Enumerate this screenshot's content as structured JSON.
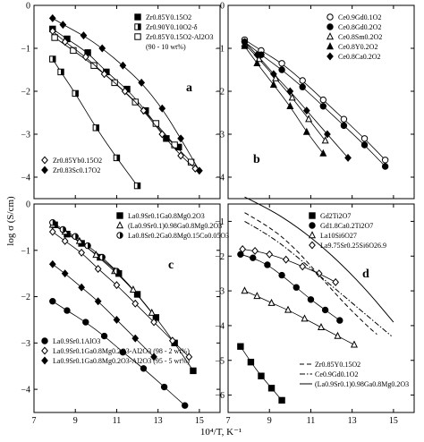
{
  "chart_data": [
    {
      "panel": "a",
      "type": "scatter",
      "xlim": [
        7,
        16
      ],
      "ylim": [
        -4.5,
        0
      ],
      "xticks": [
        7,
        9,
        11,
        13,
        15
      ],
      "yticks": [
        0,
        -1,
        -2,
        -3,
        -4
      ],
      "legend_placement": [
        "top-right",
        "bottom-left"
      ],
      "series": [
        {
          "name": "Zr0.85Y0.15O2",
          "marker": "square-filled",
          "legend": 0,
          "x": [
            7.9,
            8.6,
            9.6,
            10.5,
            11.5,
            12.4,
            13.4,
            14.0
          ],
          "y": [
            -0.55,
            -0.78,
            -1.1,
            -1.55,
            -1.95,
            -2.45,
            -3.1,
            -3.3
          ]
        },
        {
          "name": "Zr0.90Y0.10O2-δ",
          "marker": "square-half",
          "legend": 0,
          "x": [
            7.9,
            8.3,
            9.0,
            10.0,
            11.0,
            12.0
          ],
          "y": [
            -1.25,
            -1.55,
            -2.05,
            -2.85,
            -3.55,
            -4.2
          ]
        },
        {
          "name": "Zr0.85Y0.15O2-Al2O3",
          "marker": "square-open",
          "legend": 0,
          "x": [
            8.0,
            8.9,
            9.9,
            10.9,
            11.9,
            12.9,
            13.8,
            14.6
          ],
          "y": [
            -0.75,
            -1.05,
            -1.4,
            -1.8,
            -2.25,
            -2.75,
            -3.25,
            -3.65
          ]
        },
        {
          "name": "Zr0.85Yb0.15O2",
          "marker": "diamond-open",
          "legend": 1,
          "x": [
            7.9,
            8.5,
            9.5,
            10.4,
            11.4,
            12.3,
            13.2,
            14.1,
            14.8
          ],
          "y": [
            -0.6,
            -0.85,
            -1.2,
            -1.6,
            -2.0,
            -2.45,
            -3.0,
            -3.5,
            -3.8
          ]
        },
        {
          "name": "Zr0.83Sc0.17O2",
          "marker": "diamond-filled",
          "legend": 1,
          "x": [
            7.9,
            8.4,
            9.4,
            10.3,
            11.3,
            12.2,
            13.2,
            14.1,
            15.0
          ],
          "y": [
            -0.3,
            -0.45,
            -0.7,
            -1.0,
            -1.4,
            -1.8,
            -2.4,
            -3.1,
            -3.85
          ]
        }
      ],
      "legend_note": "(90 - 10 wt%)"
    },
    {
      "panel": "b",
      "type": "scatter",
      "xlim": [
        7,
        16
      ],
      "ylim": [
        -4.5,
        0
      ],
      "xticks": [
        7,
        9,
        11,
        13,
        15
      ],
      "yticks": [
        0,
        -1,
        -2,
        -3,
        -4
      ],
      "legend_placement": "top-right",
      "series": [
        {
          "name": "Ce0.9Gd0.1O2",
          "marker": "circle-open",
          "x": [
            7.8,
            8.6,
            9.6,
            10.6,
            11.6,
            12.6,
            13.6,
            14.6
          ],
          "y": [
            -0.8,
            -1.05,
            -1.35,
            -1.75,
            -2.2,
            -2.65,
            -3.1,
            -3.6
          ]
        },
        {
          "name": "Ce0.8Gd0.2O2",
          "marker": "circle-filled",
          "x": [
            7.8,
            8.6,
            9.6,
            10.6,
            11.6,
            12.6,
            13.6,
            14.6
          ],
          "y": [
            -0.85,
            -1.15,
            -1.5,
            -1.9,
            -2.35,
            -2.8,
            -3.25,
            -3.75
          ]
        },
        {
          "name": "Ce0.8Sm0.2O2",
          "marker": "triangle-open",
          "x": [
            7.8,
            8.5,
            9.3,
            10.1,
            10.9,
            11.7
          ],
          "y": [
            -0.9,
            -1.25,
            -1.7,
            -2.15,
            -2.65,
            -3.15
          ]
        },
        {
          "name": "Ce0.8Y0.2O2",
          "marker": "triangle-filled",
          "x": [
            7.8,
            8.4,
            9.2,
            10.0,
            10.8,
            11.6
          ],
          "y": [
            -0.95,
            -1.35,
            -1.85,
            -2.35,
            -2.95,
            -3.45
          ]
        },
        {
          "name": "Ce0.8Ca0.2O2",
          "marker": "diamond-filled",
          "x": [
            7.8,
            8.4,
            9.2,
            10.0,
            10.8,
            11.8,
            12.8
          ],
          "y": [
            -0.85,
            -1.15,
            -1.6,
            -2.0,
            -2.45,
            -3.0,
            -3.55
          ]
        }
      ]
    },
    {
      "panel": "c",
      "type": "scatter",
      "xlim": [
        7,
        16
      ],
      "ylim": [
        -4.5,
        0
      ],
      "xticks": [
        7,
        9,
        11,
        13,
        15
      ],
      "yticks": [
        0,
        -1,
        -2,
        -3,
        -4
      ],
      "legend_placement": [
        "top-right",
        "bottom-left"
      ],
      "series": [
        {
          "name": "La0.9Sr0.1Ga0.8Mg0.2O3",
          "marker": "square-filled",
          "legend": 0,
          "x": [
            8.0,
            8.6,
            9.3,
            10.2,
            11.1,
            12.0,
            12.9,
            13.8,
            14.7
          ],
          "y": [
            -0.45,
            -0.65,
            -0.85,
            -1.15,
            -1.5,
            -1.95,
            -2.45,
            -3.0,
            -3.6
          ]
        },
        {
          "name": "(La0.9Sr0.1)0.98Ga0.8Mg0.2O3",
          "marker": "triangle-open",
          "legend": 0,
          "x": [
            7.9,
            8.5,
            9.2,
            10.0,
            10.9,
            11.8,
            12.7
          ],
          "y": [
            -0.45,
            -0.6,
            -0.8,
            -1.1,
            -1.45,
            -1.85,
            -2.35
          ]
        },
        {
          "name": "La0.8Sr0.2Ga0.8Mg0.15Co0.05O3",
          "marker": "circle-half",
          "legend": 0,
          "x": [
            7.9,
            8.4,
            9.0,
            9.6,
            10.3,
            11.0
          ],
          "y": [
            -0.4,
            -0.55,
            -0.7,
            -0.9,
            -1.15,
            -1.45
          ]
        },
        {
          "name": "La0.9Sr0.1AlO3",
          "marker": "circle-filled",
          "legend": 1,
          "x": [
            7.9,
            8.6,
            9.5,
            10.4,
            11.3,
            12.3,
            13.3,
            14.3
          ],
          "y": [
            -2.1,
            -2.3,
            -2.55,
            -2.85,
            -3.2,
            -3.55,
            -3.95,
            -4.35
          ]
        },
        {
          "name": "La0.9Sr0.1Ga0.8Mg0.2O3-Al2O3 (98 - 2 wt%)",
          "marker": "diamond-open",
          "legend": 1,
          "x": [
            7.9,
            8.5,
            9.3,
            10.1,
            11.0,
            11.9,
            12.8,
            13.7,
            14.5
          ],
          "y": [
            -0.6,
            -0.8,
            -1.05,
            -1.4,
            -1.75,
            -2.15,
            -2.55,
            -2.95,
            -3.3
          ]
        },
        {
          "name": "La0.9Sr0.1Ga0.8Mg0.2O3-Al2O3 (95 - 5 wt%)",
          "marker": "diamond-filled",
          "legend": 1,
          "x": [
            7.9,
            8.5,
            9.3,
            10.1,
            11.0,
            11.9,
            12.8
          ],
          "y": [
            -1.3,
            -1.5,
            -1.8,
            -2.1,
            -2.5,
            -2.9,
            -3.3
          ]
        }
      ]
    },
    {
      "panel": "d",
      "type": "line",
      "xlim": [
        7,
        16
      ],
      "ylim": [
        -6.5,
        -0.5
      ],
      "xticks": [
        7,
        9,
        11,
        13,
        15
      ],
      "yticks": [
        -1,
        -2,
        -3,
        -4,
        -5,
        -6
      ],
      "legend_placement": [
        "top-right",
        "bottom-right"
      ],
      "series": [
        {
          "name": "Gd2Ti2O7",
          "marker": "square-filled",
          "legend": 0,
          "x": [
            7.6,
            8.1,
            8.6,
            9.1,
            9.6
          ],
          "y": [
            -4.6,
            -5.05,
            -5.45,
            -5.8,
            -6.15
          ]
        },
        {
          "name": "Gd1.8Ca0.2Ti2O7",
          "marker": "circle-filled",
          "legend": 0,
          "x": [
            7.6,
            8.2,
            8.9,
            9.6,
            10.3,
            11.0,
            11.7,
            12.4
          ],
          "y": [
            -1.95,
            -2.05,
            -2.25,
            -2.55,
            -2.9,
            -3.25,
            -3.55,
            -3.85
          ]
        },
        {
          "name": "La10Si6O27",
          "marker": "triangle-open",
          "legend": 0,
          "x": [
            7.8,
            8.4,
            9.1,
            9.9,
            10.7,
            11.5,
            12.3,
            13.1
          ],
          "y": [
            -3.0,
            -3.15,
            -3.35,
            -3.55,
            -3.8,
            -4.05,
            -4.3,
            -4.55
          ]
        },
        {
          "name": "La9.75Sr0.25Si6O26.9",
          "marker": "diamond-open",
          "legend": 0,
          "x": [
            7.7,
            8.3,
            9.0,
            9.8,
            10.6,
            11.4,
            12.2
          ],
          "y": [
            -1.8,
            -1.85,
            -1.95,
            -2.1,
            -2.3,
            -2.5,
            -2.75
          ]
        },
        {
          "name": "Zr0.85Y0.15O2",
          "style": "dashed",
          "legend": 1,
          "x": [
            7.8,
            9.0,
            10.2,
            11.4,
            12.6,
            13.8,
            14.2
          ],
          "y": [
            -0.75,
            -1.15,
            -1.75,
            -2.55,
            -3.35,
            -4.05,
            -4.25
          ]
        },
        {
          "name": "Ce0.9Gd0.1O2",
          "style": "dash-dot",
          "legend": 1,
          "x": [
            7.8,
            9.0,
            10.2,
            11.4,
            12.6,
            13.8,
            14.9
          ],
          "y": [
            -1.0,
            -1.4,
            -1.95,
            -2.55,
            -3.15,
            -3.75,
            -4.3
          ]
        },
        {
          "name": "(La0.9Sr0.1)0.98Ga0.8Mg0.2O3",
          "style": "solid",
          "legend": 1,
          "x": [
            7.8,
            9.0,
            10.2,
            11.4,
            12.6,
            13.8,
            15.0
          ],
          "y": [
            -0.3,
            -0.65,
            -1.1,
            -1.65,
            -2.3,
            -3.05,
            -3.9
          ]
        }
      ]
    }
  ],
  "ylabel": "log σ (S/cm)",
  "xlabel": "10⁴/T, K⁻¹"
}
